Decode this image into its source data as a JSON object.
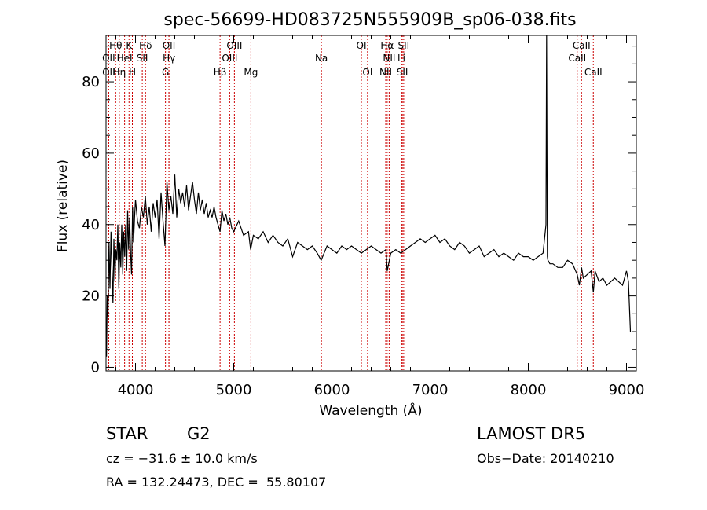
{
  "chart_data": {
    "type": "line",
    "title": "spec-56699-HD083725N555909B_sp06-038.fits",
    "xlabel": "Wavelength (Å)",
    "ylabel": "Flux (relative)",
    "xlim": [
      3700,
      9100
    ],
    "ylim": [
      -1,
      93
    ],
    "xticks": [
      4000,
      5000,
      6000,
      7000,
      8000,
      9000
    ],
    "yticks": [
      0,
      20,
      40,
      60,
      80
    ],
    "line_color": "#000000",
    "marker_color": "#cc0000",
    "series": [
      {
        "x": [
          3705,
          3712,
          3720,
          3730,
          3740,
          3750,
          3760,
          3770,
          3780,
          3790,
          3800,
          3810,
          3820,
          3830,
          3840,
          3850,
          3860,
          3870,
          3880,
          3890,
          3900,
          3910,
          3920,
          3930,
          3940,
          3950,
          3960,
          3970,
          3980,
          3990,
          4000,
          4020,
          4040,
          4060,
          4080,
          4100,
          4120,
          4140,
          4160,
          4180,
          4200,
          4220,
          4240,
          4260,
          4280,
          4300,
          4320,
          4340,
          4360,
          4380,
          4400,
          4420,
          4440,
          4460,
          4480,
          4500,
          4520,
          4540,
          4560,
          4580,
          4600,
          4620,
          4640,
          4660,
          4680,
          4700,
          4720,
          4740,
          4760,
          4780,
          4800,
          4820,
          4840,
          4861,
          4880,
          4900,
          4920,
          4940,
          4960,
          4980,
          5000,
          5050,
          5100,
          5150,
          5172,
          5200,
          5250,
          5300,
          5350,
          5400,
          5450,
          5500,
          5550,
          5600,
          5650,
          5700,
          5750,
          5800,
          5850,
          5890,
          5950,
          6000,
          6050,
          6100,
          6150,
          6200,
          6250,
          6300,
          6350,
          6400,
          6450,
          6500,
          6550,
          6563,
          6600,
          6650,
          6700,
          6750,
          6800,
          6850,
          6900,
          6950,
          7000,
          7050,
          7100,
          7150,
          7200,
          7250,
          7300,
          7350,
          7400,
          7450,
          7500,
          7550,
          7600,
          7650,
          7700,
          7750,
          7800,
          7850,
          7900,
          7950,
          8000,
          8050,
          8100,
          8150,
          8180,
          8186,
          8190,
          8194,
          8200,
          8220,
          8250,
          8300,
          8350,
          8400,
          8450,
          8498,
          8520,
          8542,
          8560,
          8600,
          8640,
          8662,
          8680,
          8720,
          8760,
          8800,
          8840,
          8880,
          8920,
          8960,
          9000,
          9020,
          9040
        ],
        "y": [
          3,
          20,
          14,
          35,
          22,
          38,
          28,
          18,
          36,
          24,
          33,
          30,
          40,
          22,
          35,
          28,
          40,
          26,
          38,
          31,
          40,
          27,
          44,
          33,
          42,
          32,
          26,
          45,
          35,
          42,
          47,
          41,
          39,
          45,
          42,
          48,
          40,
          45,
          38,
          46,
          42,
          47,
          36,
          49,
          41,
          34,
          52,
          44,
          48,
          43,
          54,
          42,
          50,
          46,
          49,
          45,
          51,
          44,
          48,
          52,
          47,
          43,
          49,
          44,
          47,
          43,
          46,
          42,
          44,
          42,
          45,
          42,
          40,
          38,
          44,
          41,
          43,
          40,
          42,
          39,
          38,
          41,
          37,
          38,
          33,
          37,
          36,
          38,
          35,
          37,
          35,
          34,
          36,
          31,
          35,
          34,
          33,
          34,
          32,
          30,
          34,
          33,
          32,
          34,
          33,
          34,
          33,
          32,
          33,
          34,
          33,
          32,
          33,
          27,
          32,
          33,
          32,
          33,
          34,
          35,
          36,
          35,
          36,
          37,
          35,
          36,
          34,
          33,
          35,
          34,
          32,
          33,
          34,
          31,
          32,
          33,
          31,
          32,
          31,
          30,
          32,
          31,
          31,
          30,
          31,
          32,
          40,
          93,
          60,
          31,
          30,
          29,
          29,
          28,
          28,
          30,
          29,
          26,
          23,
          28,
          25,
          26,
          27,
          21,
          27,
          24,
          25,
          23,
          24,
          25,
          24,
          23,
          27,
          24,
          10
        ]
      }
    ],
    "lines": [
      {
        "label": "Hθ",
        "x": 3798,
        "row": 1
      },
      {
        "label": "K",
        "x": 3934,
        "row": 1
      },
      {
        "label": "Hδ",
        "x": 4102,
        "row": 1
      },
      {
        "label": "OII",
        "x": 4340,
        "row": 1
      },
      {
        "label": "OIII",
        "x": 5007,
        "row": 1
      },
      {
        "label": "OI",
        "x": 6300,
        "row": 1
      },
      {
        "label": "Hα",
        "x": 6563,
        "row": 1
      },
      {
        "label": "SII",
        "x": 6731,
        "row": 1
      },
      {
        "label": "CaII",
        "x": 8542,
        "row": 1
      },
      {
        "label": "OII",
        "x": 3727,
        "row": 2
      },
      {
        "label": "HeI",
        "x": 3889,
        "row": 2
      },
      {
        "label": "SII",
        "x": 4069,
        "row": 2
      },
      {
        "label": "Hγ",
        "x": 4341,
        "row": 2
      },
      {
        "label": "OIII",
        "x": 4959,
        "row": 2
      },
      {
        "label": "Na",
        "x": 5893,
        "row": 2
      },
      {
        "label": "NII",
        "x": 6583,
        "row": 2
      },
      {
        "label": "Li",
        "x": 6708,
        "row": 2
      },
      {
        "label": "CaII",
        "x": 8498,
        "row": 2
      },
      {
        "label": "OII",
        "x": 3727,
        "row": 3
      },
      {
        "label": "Hη",
        "x": 3835,
        "row": 3
      },
      {
        "label": "H",
        "x": 3968,
        "row": 3
      },
      {
        "label": "G",
        "x": 4305,
        "row": 3
      },
      {
        "label": "Hβ",
        "x": 4861,
        "row": 3
      },
      {
        "label": "Mg",
        "x": 5175,
        "row": 3
      },
      {
        "label": "OI",
        "x": 6363,
        "row": 3
      },
      {
        "label": "NII",
        "x": 6548,
        "row": 3
      },
      {
        "label": "SII",
        "x": 6717,
        "row": 3
      },
      {
        "label": "CaII",
        "x": 8662,
        "row": 3
      }
    ]
  },
  "info": {
    "object_class": "STAR",
    "subclass": "G2",
    "survey": "LAMOST DR5",
    "velocity": "cz = −31.6 ± 10.0 km/s",
    "obs_date": "Obs−Date: 20140210",
    "coords": "RA = 132.24473, DEC =  55.80107"
  }
}
